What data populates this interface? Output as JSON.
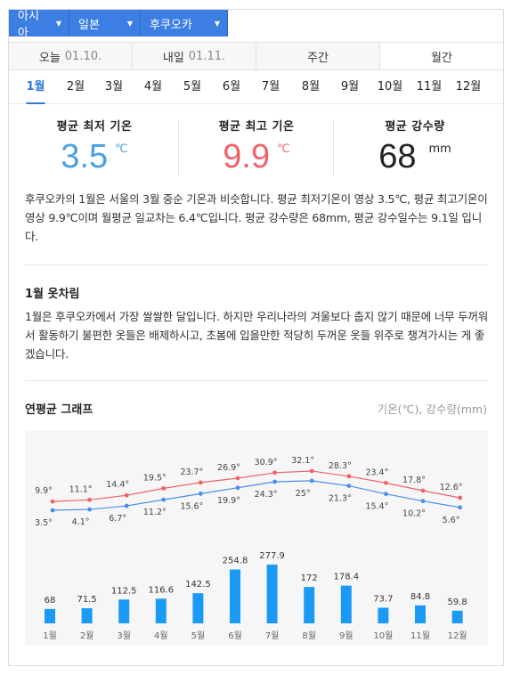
{
  "breadcrumb": [
    {
      "label": "아시아"
    },
    {
      "label": "일본"
    },
    {
      "label": "후쿠오카"
    }
  ],
  "day_tabs": [
    {
      "label": "오늘",
      "date": "01.10."
    },
    {
      "label": "내일",
      "date": "01.11."
    },
    {
      "label": "주간",
      "date": ""
    },
    {
      "label": "월간",
      "date": ""
    }
  ],
  "active_day_tab": "월간",
  "months": [
    "1월",
    "2월",
    "3월",
    "4월",
    "5월",
    "6월",
    "7월",
    "8월",
    "9월",
    "10월",
    "11월",
    "12월"
  ],
  "active_month": "1월",
  "summary": {
    "min_label": "평균 최저 기온",
    "min_value": "3.5",
    "min_unit": "℃",
    "max_label": "평균 최고 기온",
    "max_value": "9.9",
    "max_unit": "℃",
    "rain_label": "평균 강수량",
    "rain_value": "68",
    "rain_unit": "mm"
  },
  "description": "후쿠오카의 1월은 서울의 3월 중순 기온과 비슷합니다. 평균 최저기온이 영상 3.5℃, 평균 최고기온이 영상 9.9℃이며 월평균 일교차는 6.4℃입니다. 평균 강수량은 68mm, 평균 강수일수는 9.1일 입니다.",
  "clothing": {
    "title": "1월 옷차림",
    "text": "1월은 후쿠오카에서 가장 쌀쌀한 달입니다. 하지만 우리나라의 겨울보다 춥지 않기 때문에 너무 두꺼워서 활동하기 불편한 옷들은 배제하시고, 초봄에 입을만한 적당히 두꺼운 옷들 위주로 챙겨가시는 게 좋겠습니다."
  },
  "graph": {
    "title": "연평균 그래프",
    "unit_label": "기온(℃), 강수량(mm)"
  },
  "chart_data": {
    "type": "line+bar",
    "categories": [
      "1월",
      "2월",
      "3월",
      "4월",
      "5월",
      "6월",
      "7월",
      "8월",
      "9월",
      "10월",
      "11월",
      "12월"
    ],
    "series": [
      {
        "name": "최고 기온",
        "kind": "line",
        "color": "#f0626b",
        "values": [
          9.9,
          11.1,
          14.4,
          19.5,
          23.7,
          26.9,
          30.9,
          32.1,
          28.3,
          23.4,
          17.8,
          12.6
        ],
        "labels": [
          "9.9°",
          "11.1°",
          "14.4°",
          "19.5°",
          "23.7°",
          "26.9°",
          "30.9°",
          "32.1°",
          "28.3°",
          "23.4°",
          "17.8°",
          "12.6°"
        ]
      },
      {
        "name": "최저 기온",
        "kind": "line",
        "color": "#4a8ee8",
        "values": [
          3.5,
          4.1,
          6.7,
          11.2,
          15.6,
          19.9,
          24.3,
          25,
          21.3,
          15.4,
          10.2,
          5.6
        ],
        "labels": [
          "3.5°",
          "4.1°",
          "6.7°",
          "11.2°",
          "15.6°",
          "19.9°",
          "24.3°",
          "25°",
          "21.3°",
          "15.4°",
          "10.2°",
          "5.6°"
        ]
      },
      {
        "name": "강수량",
        "kind": "bar",
        "color": "#1a9af5",
        "values": [
          68,
          71.5,
          112.5,
          116.6,
          142.5,
          254.8,
          277.9,
          172,
          178.4,
          73.7,
          84.8,
          59.8
        ],
        "labels": [
          "68",
          "71.5",
          "112.5",
          "116.6",
          "142.5",
          "254.8",
          "277.9",
          "172",
          "178.4",
          "73.7",
          "84.8",
          "59.8"
        ]
      }
    ],
    "grid": false
  }
}
